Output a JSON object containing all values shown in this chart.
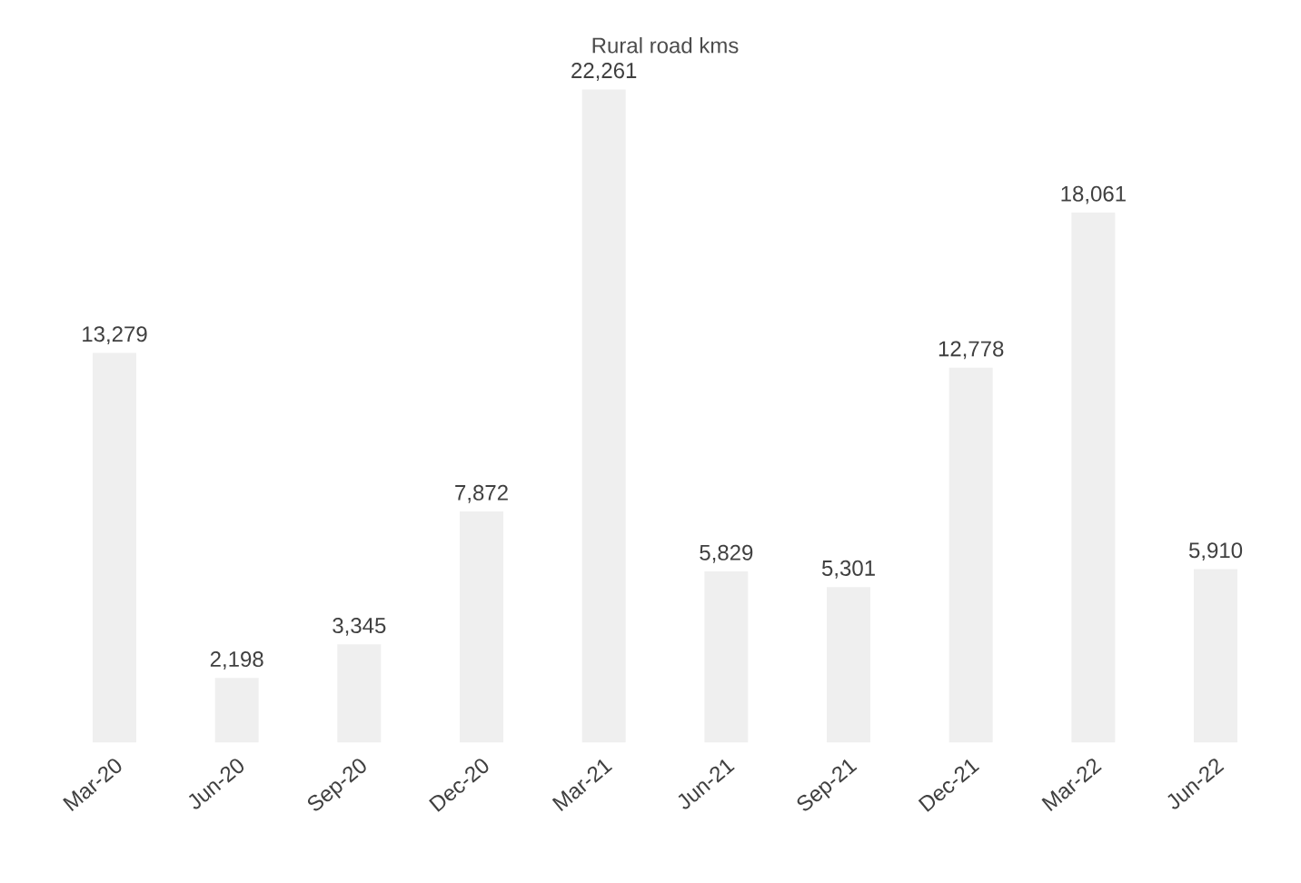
{
  "chart_data": {
    "type": "bar",
    "title": "Rural road kms",
    "categories": [
      "Mar-20",
      "Jun-20",
      "Sep-20",
      "Dec-20",
      "Mar-21",
      "Jun-21",
      "Sep-21",
      "Dec-21",
      "Mar-22",
      "Jun-22"
    ],
    "values": [
      13279,
      2198,
      3345,
      7872,
      22261,
      5829,
      5301,
      12778,
      18061,
      5910
    ],
    "value_labels": [
      "13,279",
      "2,198",
      "3,345",
      "7,872",
      "22,261",
      "5,829",
      "5,301",
      "12,778",
      "18,061",
      "5,910"
    ],
    "color": "#efefef"
  }
}
